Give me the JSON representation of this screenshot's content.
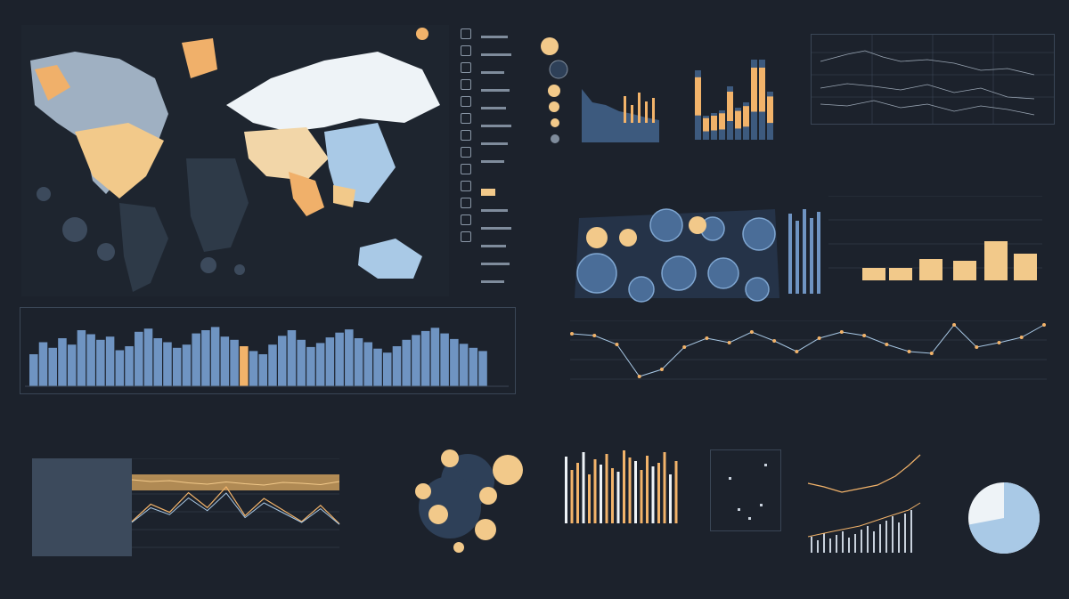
{
  "colors": {
    "bg": "#1c222c",
    "accent": "#f2b36a",
    "blue": "#6f94c2",
    "pale": "#eef3f7",
    "grid": "#3b4756"
  },
  "chart_data": [
    {
      "type": "bar",
      "title": "",
      "values": [
        40,
        55,
        48,
        60,
        52,
        70,
        65,
        58,
        62,
        45,
        50,
        68,
        72,
        60,
        55,
        48,
        52,
        66,
        70,
        74,
        62,
        58,
        50,
        44,
        40,
        52,
        63,
        70,
        58,
        49,
        54,
        61,
        67,
        71,
        60,
        55,
        47,
        42,
        50,
        58,
        64,
        69,
        73,
        66,
        59,
        53,
        48,
        44
      ],
      "highlight_index": 22
    },
    {
      "type": "line",
      "values": [
        48,
        52,
        50,
        55,
        58,
        53,
        57,
        60,
        54,
        56,
        59,
        52
      ],
      "series_y": [
        30,
        45,
        38,
        55,
        42,
        60,
        35,
        50,
        40,
        30,
        44,
        28
      ]
    },
    {
      "type": "bar",
      "values": [
        52,
        18,
        20,
        22,
        40,
        24,
        28,
        60,
        60,
        36
      ]
    },
    {
      "type": "line",
      "values": [
        60,
        58,
        48,
        12,
        20,
        45,
        55,
        50,
        62,
        52,
        40,
        55,
        62,
        58,
        48,
        40,
        38,
        70,
        45,
        50,
        56,
        70
      ]
    },
    {
      "type": "bar",
      "values": [
        75,
        60,
        68,
        80,
        55,
        72,
        66,
        78,
        62,
        58,
        82,
        74,
        70,
        60,
        76,
        64,
        68,
        80,
        55,
        70
      ]
    },
    {
      "type": "pie",
      "values": [
        72,
        28
      ]
    }
  ]
}
